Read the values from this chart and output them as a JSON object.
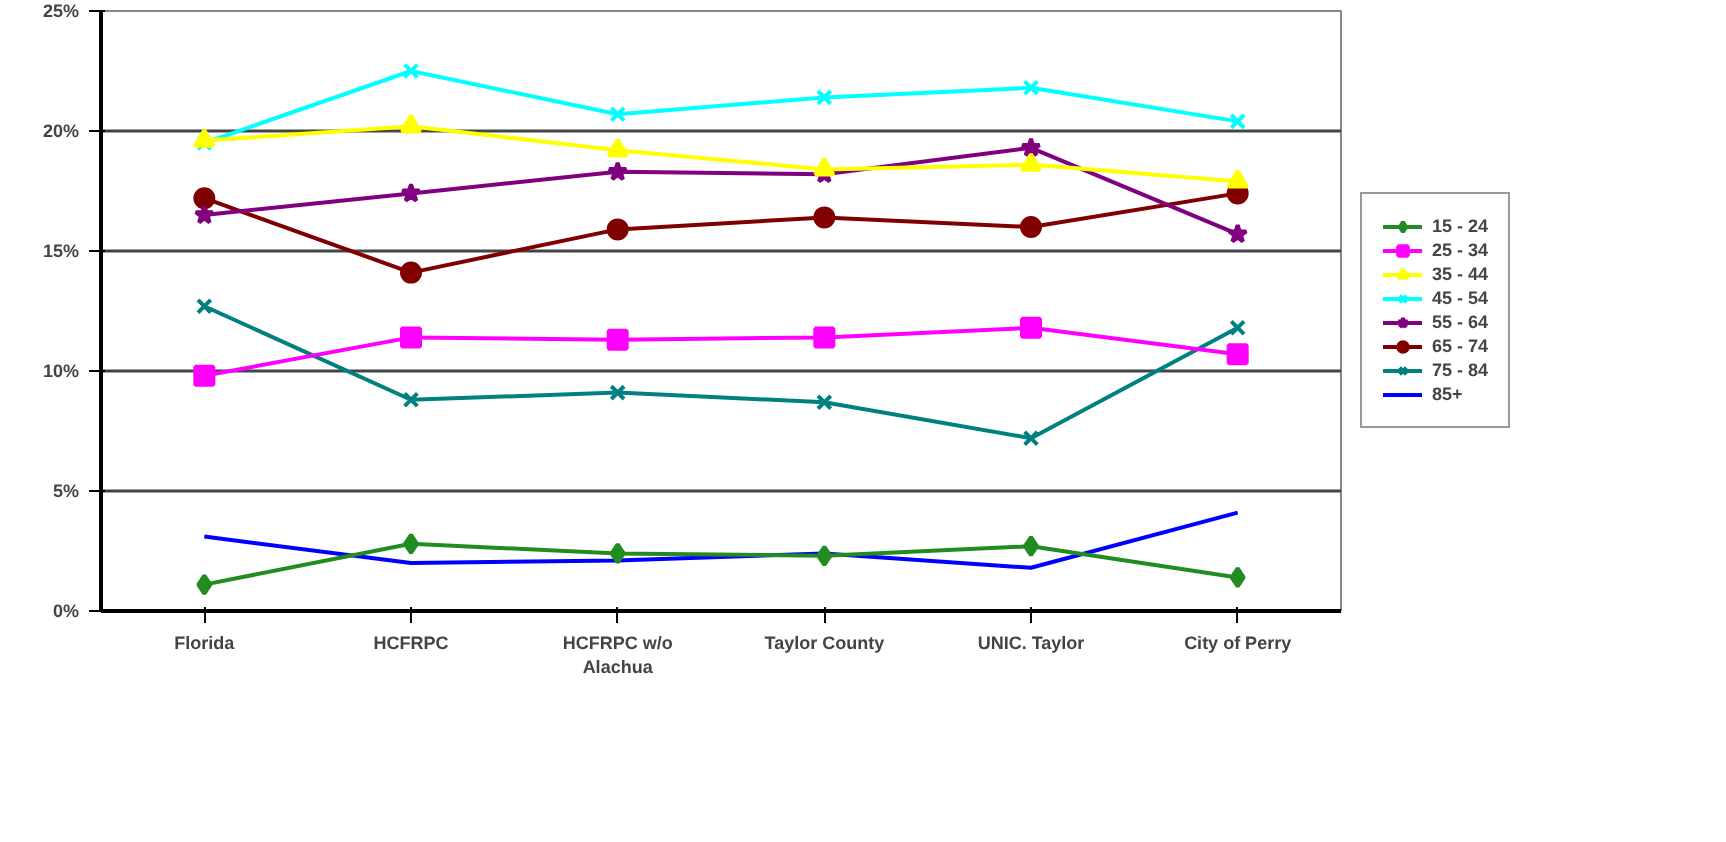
{
  "chart_data": {
    "type": "line",
    "categories": [
      "Florida",
      "HCFRPC",
      "HCFRPC w/o\nAlachua",
      "Taylor County",
      "UNIC. Taylor",
      "City of Perry"
    ],
    "ylim": [
      0,
      25
    ],
    "yticks": [
      {
        "value": 0,
        "label": "0%"
      },
      {
        "value": 5,
        "label": "5%"
      },
      {
        "value": 10,
        "label": "10%"
      },
      {
        "value": 15,
        "label": "15%"
      },
      {
        "value": 20,
        "label": "20%"
      },
      {
        "value": 25,
        "label": "25%"
      }
    ],
    "grid": "y",
    "legend": "right",
    "series": [
      {
        "name": "15 - 24",
        "color": "#228b22",
        "marker": "diamond",
        "values": [
          1.1,
          2.8,
          2.4,
          2.3,
          2.7,
          1.4
        ]
      },
      {
        "name": "25 - 34",
        "color": "#ff00ff",
        "marker": "square",
        "values": [
          9.8,
          11.4,
          11.3,
          11.4,
          11.8,
          10.7
        ]
      },
      {
        "name": "35 - 44",
        "color": "#ffff00",
        "marker": "triangle",
        "values": [
          19.6,
          20.2,
          19.2,
          18.4,
          18.6,
          17.9
        ]
      },
      {
        "name": "45 - 54",
        "color": "#00ffff",
        "marker": "cross",
        "values": [
          19.5,
          22.5,
          20.7,
          21.4,
          21.8,
          20.4
        ]
      },
      {
        "name": "55 - 64",
        "color": "#800080",
        "marker": "star",
        "values": [
          16.5,
          17.4,
          18.3,
          18.2,
          19.3,
          15.7
        ]
      },
      {
        "name": "65 - 74",
        "color": "#800000",
        "marker": "circle",
        "values": [
          17.2,
          14.1,
          15.9,
          16.4,
          16.0,
          17.4
        ]
      },
      {
        "name": "75 - 84",
        "color": "#008080",
        "marker": "cross",
        "values": [
          12.7,
          8.8,
          9.1,
          8.7,
          7.2,
          11.8
        ]
      },
      {
        "name": "85+",
        "color": "#0000ff",
        "marker": "none",
        "values": [
          3.1,
          2.0,
          2.1,
          2.4,
          1.8,
          4.1
        ]
      }
    ]
  }
}
